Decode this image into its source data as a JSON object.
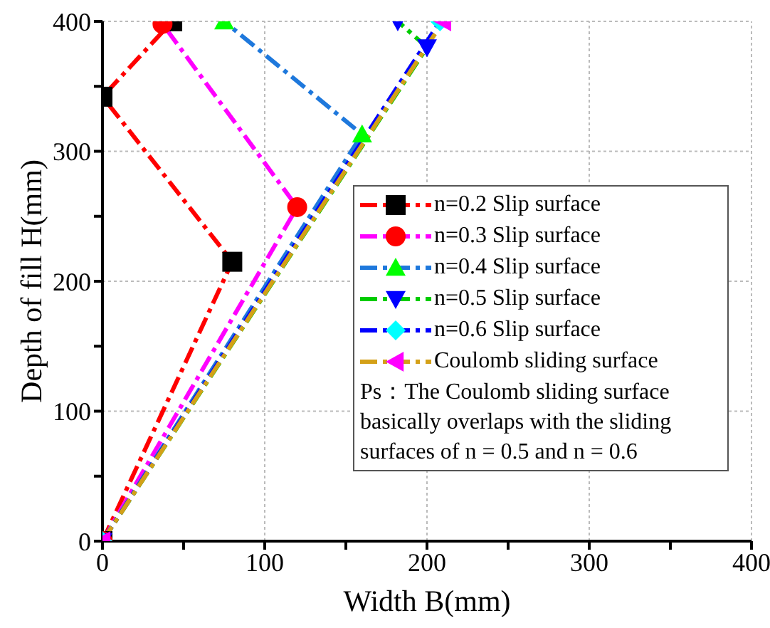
{
  "chart_data": {
    "type": "line",
    "xlabel": "Width B(mm)",
    "ylabel": "Depth of fill H(mm)",
    "xlim": [
      0,
      400
    ],
    "ylim": [
      0,
      400
    ],
    "xticks": [
      0,
      {
        "value": 50,
        "label": null
      },
      100,
      {
        "value": 150,
        "label": null
      },
      200,
      {
        "value": 250,
        "label": null
      },
      300,
      {
        "value": 350,
        "label": null
      },
      400
    ],
    "yticks": [
      0,
      {
        "value": 50,
        "label": null
      },
      100,
      {
        "value": 150,
        "label": null
      },
      200,
      {
        "value": 250,
        "label": null
      },
      300,
      {
        "value": 350,
        "label": null
      },
      400
    ],
    "grid": true,
    "legend": "bottom right",
    "line_style": "dashed",
    "series": [
      {
        "name": "n=0.2 Slip surface",
        "color": "#ff0000",
        "marker": "square",
        "colors": [
          "#000000",
          "#000000",
          "#000000",
          "#000000"
        ],
        "x": [
          0,
          80,
          0,
          43
        ],
        "values": [
          0,
          215,
          342,
          400
        ]
      },
      {
        "name": "n=0.3 Slip surface",
        "color": "#ff00ff",
        "marker": "circle",
        "colors": [
          "#ff0000",
          "#ff0000",
          "#ff0000"
        ],
        "x": [
          0,
          120,
          37
        ],
        "values": [
          0,
          257,
          398
        ]
      },
      {
        "name": "n=0.4 Slip surface",
        "color": "#1e78dc",
        "marker": "triangle",
        "colors": [
          "#00ff00",
          "#00ff00",
          "#00ff00"
        ],
        "x": [
          0,
          160,
          75
        ],
        "values": [
          0,
          313,
          400
        ]
      },
      {
        "name": "n=0.5 Slip surface",
        "color": "#00cc00",
        "marker": "triangle-down",
        "colors": [
          "#0000ff",
          "#0000ff",
          "#0000ff"
        ],
        "x": [
          0,
          200,
          182
        ],
        "values": [
          0,
          380,
          400
        ]
      },
      {
        "name": "n=0.6 Slip surface",
        "color": "#0000ff",
        "marker": "diamond",
        "colors": [
          "#00ffff",
          "#00ffff"
        ],
        "x": [
          0,
          208
        ],
        "values": [
          0,
          400
        ]
      },
      {
        "name": "Coulomb sliding surface",
        "color": "#d4a017",
        "marker": "triangle-left",
        "colors": [
          "#ff00ff",
          "#ff00ff"
        ],
        "x": [
          0,
          210
        ],
        "values": [
          0,
          400
        ]
      }
    ],
    "annotations": [
      "Ps：The Coulomb sliding surface basically overlaps with the sliding surfaces of n = 0.5 and n = 0.6"
    ]
  }
}
